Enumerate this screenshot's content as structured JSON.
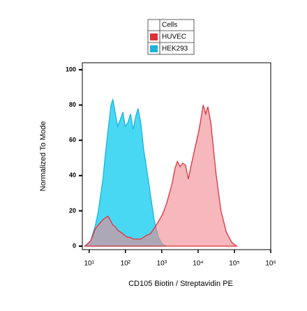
{
  "chart_data": {
    "type": "area",
    "xlabel": "CD105 Biotin / Streptavidin PE",
    "ylabel": "Normalized To Mode",
    "legend_title": "Cells",
    "xscale": "log",
    "xlim": [
      6.5,
      1000000
    ],
    "xticks": [
      {
        "value": 10,
        "label": "10¹"
      },
      {
        "value": 100,
        "label": "10²"
      },
      {
        "value": 1000,
        "label": "10³"
      },
      {
        "value": 10000,
        "label": "10⁴"
      },
      {
        "value": 100000,
        "label": "10⁵"
      },
      {
        "value": 1000000,
        "label": "10⁶"
      }
    ],
    "ylim": [
      0,
      100
    ],
    "yticks": [
      0,
      20,
      40,
      60,
      80,
      100
    ],
    "x": [
      7.7,
      11,
      15,
      18,
      24,
      28,
      33,
      40,
      45,
      53,
      61,
      73,
      85,
      98,
      117,
      138,
      163,
      194,
      222,
      265,
      316,
      375,
      480,
      615,
      810,
      1050,
      1350,
      1900,
      2300,
      2700,
      3200,
      3800,
      4500,
      5400,
      6300,
      8300,
      10700,
      13800,
      16300,
      18600,
      22400,
      31600,
      42700,
      60000,
      85000,
      115000
    ],
    "series": [
      {
        "name": "HUVEC",
        "color": "#e0303c",
        "fill": "#f08890",
        "values": [
          0,
          3,
          10,
          12,
          15,
          16,
          17,
          14,
          12,
          11,
          9,
          8,
          7,
          6,
          5,
          5,
          4,
          4,
          4,
          4,
          5,
          6,
          7,
          10,
          14,
          18,
          24,
          35,
          44,
          48,
          45,
          47,
          46,
          38,
          45,
          56,
          66,
          80,
          75,
          79,
          70,
          40,
          20,
          8,
          2,
          0
        ]
      },
      {
        "name": "HEK293",
        "color": "#18b4dc",
        "fill": "#3fd6f2",
        "values": [
          0,
          3,
          12,
          20,
          38,
          52,
          65,
          80,
          83,
          75,
          68,
          72,
          76,
          68,
          70,
          75,
          66,
          74,
          78,
          70,
          55,
          45,
          30,
          15,
          5,
          1,
          0,
          null,
          null,
          null,
          null,
          null,
          null,
          null,
          null,
          null,
          null,
          null,
          null,
          null,
          null,
          null,
          null,
          null,
          null,
          null
        ]
      }
    ]
  }
}
